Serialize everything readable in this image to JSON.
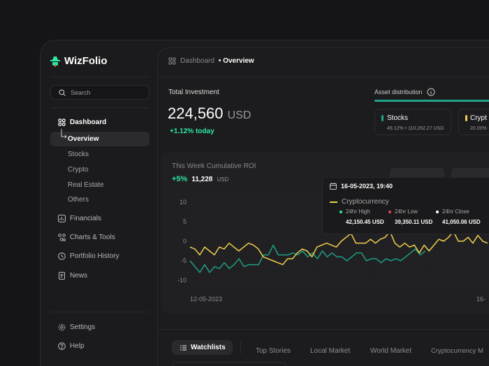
{
  "app": {
    "name": "WizFolio",
    "brand_color": "#2ee6a0"
  },
  "sidebar": {
    "search_placeholder": "Search",
    "items": [
      {
        "label": "Dashboard",
        "icon": "grid-icon"
      },
      {
        "label": "Financials",
        "icon": "bar-chart-icon"
      },
      {
        "label": "Charts & Tools",
        "icon": "nodes-icon"
      },
      {
        "label": "Portfolio History",
        "icon": "clock-icon"
      },
      {
        "label": "News",
        "icon": "newspaper-icon"
      }
    ],
    "subitems": [
      "Overview",
      "Stocks",
      "Crypto",
      "Real Estate",
      "Others"
    ],
    "footer": [
      {
        "label": "Settings",
        "icon": "gear-icon"
      },
      {
        "label": "Help",
        "icon": "help-icon"
      }
    ]
  },
  "header": {
    "breadcrumb_parent": "Dashboard",
    "breadcrumb_sep": "•",
    "breadcrumb_current": "Overview"
  },
  "investment": {
    "title": "Total Investment",
    "amount": "224,560",
    "currency": "USD",
    "change": "+1.12% today"
  },
  "assets": {
    "title": "Asset distribution",
    "cards": [
      {
        "name": "Stocks",
        "detail": "49.12% • 110,262.27 USD",
        "color": "#1fa58a"
      },
      {
        "name": "Crypt",
        "detail": "20.00%",
        "color": "#f2d04b"
      }
    ]
  },
  "roi": {
    "title": "This Week Cumulative ROI",
    "pct": "+5%",
    "amount": "11,228",
    "currency": "USD"
  },
  "chart_data": {
    "type": "line",
    "ylim": [
      -12,
      12
    ],
    "yticks": [
      "10",
      "5",
      "0",
      "-5",
      "-10"
    ],
    "xticks": [
      "12-05-2023",
      "16-"
    ],
    "series": [
      {
        "color": "#f2d04b",
        "values": [
          -1.5,
          -2,
          -3.5,
          -1.5,
          -2.5,
          -3.5,
          -1.5,
          -2,
          -0.5,
          -1.5,
          -2.5,
          -1.5,
          -0.5,
          -1,
          -2,
          -4,
          -4.5,
          -5,
          -5.5,
          -6,
          -4.5,
          -4.5,
          -3,
          -2,
          -2.5,
          -4,
          -1.5,
          -1,
          -0.5,
          -1,
          -1.5,
          0,
          1,
          2,
          -0.5,
          -0.5,
          -0.5,
          0.5,
          -0.5,
          0.5,
          1,
          2.5,
          -0.5,
          -1.5,
          -0.5,
          -1.5,
          -1,
          -3,
          -1,
          -2.5,
          -1,
          0.5,
          0,
          1,
          2.5,
          0,
          0,
          1,
          -0.5,
          1.5,
          0,
          -0.5
        ]
      },
      {
        "color": "#1f9e82",
        "values": [
          -5,
          -6.5,
          -8,
          -6,
          -8,
          -6.5,
          -7,
          -5.5,
          -7,
          -6,
          -4.5,
          -6.5,
          -6,
          -6,
          -6,
          -3.5,
          -3.5,
          -1,
          -3.5,
          -3.5,
          -3.5,
          -3,
          -3.5,
          -2.5,
          -4,
          -3,
          -4.5,
          -2.5,
          -4,
          -3,
          -4,
          -4,
          -5,
          -4,
          -3,
          -3,
          -5,
          -4.5,
          -4.5,
          -5.5,
          -4.5,
          -5,
          -4.5,
          -5,
          -4,
          -3,
          -2,
          -3.5,
          -2.5
        ]
      }
    ]
  },
  "tooltip": {
    "date": "16-05-2023, 19:40",
    "series": "Cryptocurrency",
    "stats": [
      {
        "label": "24hr High",
        "value": "42,150.45 USD",
        "color": "#2ee6a0"
      },
      {
        "label": "24hr Low",
        "value": "39,350.11 USD",
        "color": "#e5484d"
      },
      {
        "label": "24hr Close",
        "value": "41,050.06 USD",
        "color": "#ffffff"
      }
    ]
  },
  "tabs": [
    "Watchlists",
    "Top Stories",
    "Local Market",
    "World Market",
    "Cryptocurrency M"
  ]
}
